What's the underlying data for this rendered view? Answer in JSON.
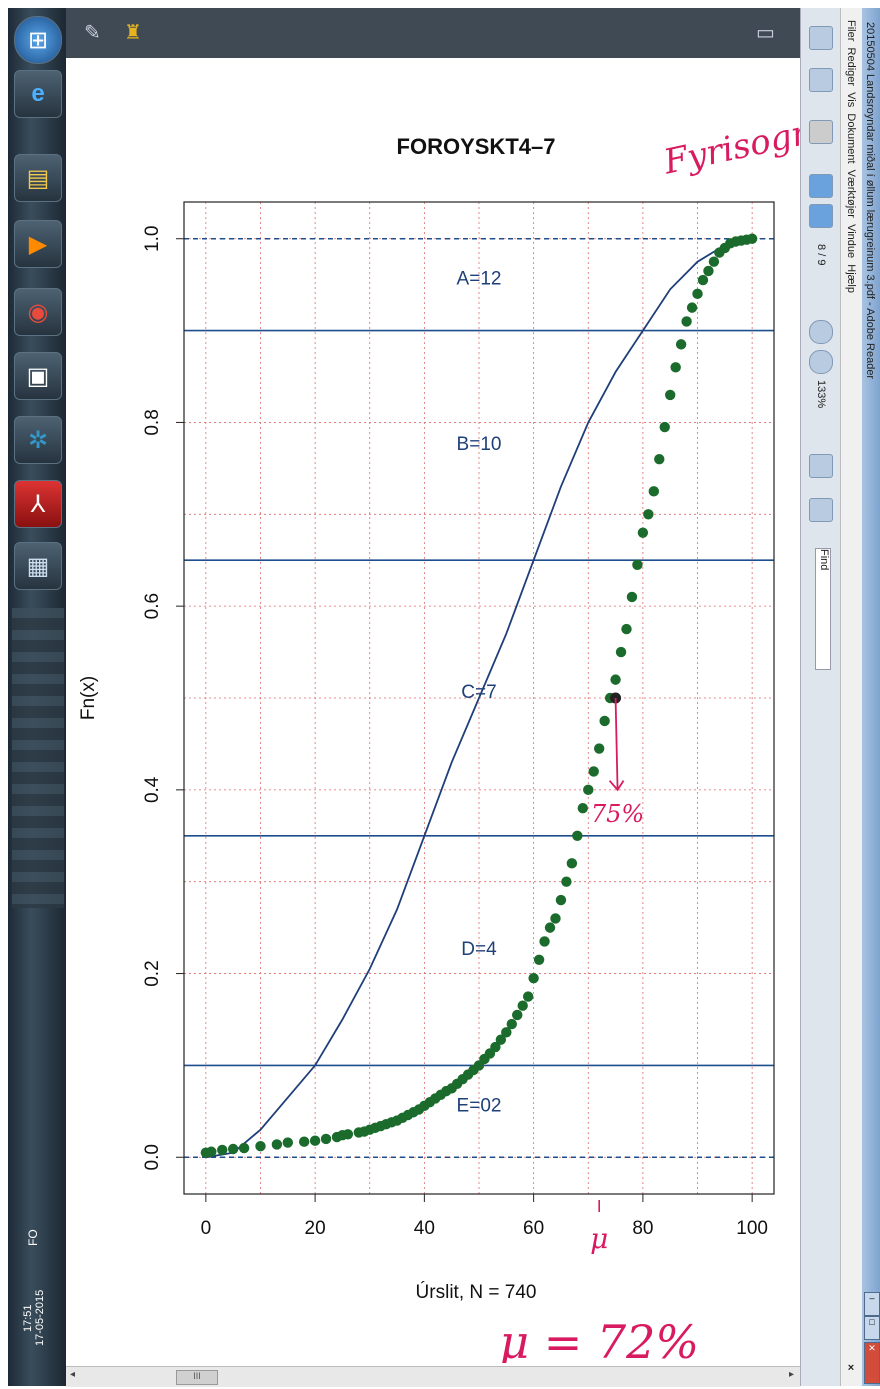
{
  "window": {
    "title": "20150504 Landsroyndar miðal í øllum lærugreinum 3.pdf - Adobe Reader",
    "menu": [
      "Filer",
      "Rediger",
      "Vis",
      "Dokument",
      "Værktøjer",
      "Vindue",
      "Hjælp"
    ],
    "page_current": "8",
    "page_sep": "/",
    "page_total": "9",
    "zoom": "133%",
    "find_label": "Find",
    "close_x": "×"
  },
  "taskbar": {
    "lang": "FO",
    "time": "17:51",
    "date": "17-05-2015",
    "icons": [
      "start-orb-icon",
      "ie-icon",
      "explorer-icon",
      "media-icon",
      "chrome-icon",
      "tool-icon",
      "game-icon",
      "acrobat-icon",
      "reader-icon"
    ]
  },
  "scrollbar": {
    "thumb_label": "III"
  },
  "chart_data": {
    "type": "scatter",
    "title": "FOROYSKT4–7",
    "xlabel": "Úrslit, N = 740",
    "ylabel": "Fn(x)",
    "xlim": [
      -4,
      104
    ],
    "ylim": [
      -0.04,
      1.04
    ],
    "x_ticks": [
      "0",
      "20",
      "40",
      "60",
      "80",
      "100"
    ],
    "y_ticks": [
      "0.0",
      "0.2",
      "0.4",
      "0.6",
      "0.8",
      "1.0"
    ],
    "grid": true,
    "grade_lines": [
      0.1,
      0.35,
      0.65,
      0.9
    ],
    "dashed_lines": [
      0.0,
      1.0
    ],
    "grade_labels": [
      {
        "text": "A=12",
        "x": 50,
        "y": 0.95
      },
      {
        "text": "B=10",
        "x": 50,
        "y": 0.77
      },
      {
        "text": "C=7",
        "x": 50,
        "y": 0.5
      },
      {
        "text": "D=4",
        "x": 50,
        "y": 0.22
      },
      {
        "text": "E=02",
        "x": 50,
        "y": 0.05
      }
    ],
    "reference_curve": {
      "x": [
        0,
        5,
        10,
        15,
        20,
        25,
        30,
        35,
        40,
        45,
        50,
        55,
        60,
        65,
        70,
        75,
        80,
        85,
        90,
        95,
        100
      ],
      "y": [
        0,
        0.005,
        0.03,
        0.065,
        0.1,
        0.15,
        0.205,
        0.27,
        0.35,
        0.43,
        0.5,
        0.57,
        0.65,
        0.73,
        0.8,
        0.855,
        0.9,
        0.945,
        0.975,
        0.993,
        1.0
      ]
    },
    "points": {
      "x": [
        0,
        1,
        3,
        5,
        7,
        10,
        13,
        15,
        18,
        20,
        22,
        24,
        25,
        26,
        28,
        29,
        30,
        31,
        32,
        33,
        34,
        35,
        36,
        37,
        38,
        39,
        40,
        41,
        42,
        43,
        44,
        45,
        46,
        47,
        48,
        49,
        50,
        51,
        52,
        53,
        54,
        55,
        56,
        57,
        58,
        59,
        60,
        61,
        62,
        63,
        64,
        65,
        66,
        67,
        68,
        69,
        70,
        71,
        72,
        73,
        74,
        75,
        76,
        77,
        78,
        79,
        80,
        81,
        82,
        83,
        84,
        85,
        86,
        87,
        88,
        89,
        90,
        91,
        92,
        93,
        94,
        95,
        96,
        97,
        98,
        99,
        100
      ],
      "y": [
        0.005,
        0.006,
        0.008,
        0.009,
        0.01,
        0.012,
        0.014,
        0.016,
        0.017,
        0.018,
        0.02,
        0.022,
        0.024,
        0.025,
        0.027,
        0.028,
        0.03,
        0.032,
        0.034,
        0.036,
        0.038,
        0.04,
        0.043,
        0.046,
        0.049,
        0.052,
        0.056,
        0.06,
        0.064,
        0.068,
        0.072,
        0.075,
        0.08,
        0.085,
        0.09,
        0.095,
        0.1,
        0.107,
        0.113,
        0.12,
        0.128,
        0.136,
        0.145,
        0.155,
        0.165,
        0.175,
        0.195,
        0.215,
        0.235,
        0.25,
        0.26,
        0.28,
        0.3,
        0.32,
        0.35,
        0.38,
        0.4,
        0.42,
        0.445,
        0.475,
        0.5,
        0.52,
        0.55,
        0.575,
        0.61,
        0.645,
        0.68,
        0.7,
        0.725,
        0.76,
        0.795,
        0.83,
        0.86,
        0.885,
        0.91,
        0.925,
        0.94,
        0.955,
        0.965,
        0.975,
        0.985,
        0.99,
        0.995,
        0.997,
        0.998,
        0.999,
        1.0
      ]
    },
    "annotations": {
      "marker_point": {
        "x": 75,
        "y": 0.5
      },
      "percent": "75%",
      "mean_label": "μ = 72%",
      "mu_small": "μ",
      "header_note": "Fyrisogn"
    }
  }
}
